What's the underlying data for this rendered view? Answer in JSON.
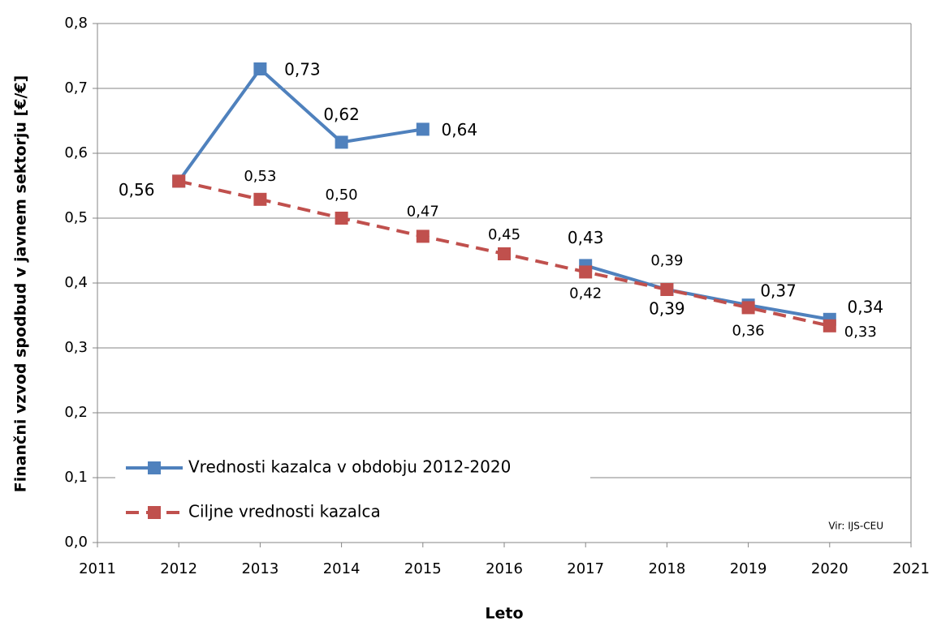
{
  "chart_data": {
    "type": "line",
    "y_label": "Finančni vzvod spodbud v javnem sektorju [€/€]",
    "x_label": "Leto",
    "annotation": "Vir: IJS-CEU",
    "x": [
      2012,
      2013,
      2014,
      2015,
      2016,
      2017,
      2018,
      2019,
      2020
    ],
    "series": [
      {
        "name": "Vrednosti kazalca v obdobju 2012-2020",
        "color": "#4f81bd",
        "dash": false,
        "values": [
          0.557,
          0.73,
          0.617,
          0.637,
          null,
          0.427,
          0.39,
          0.366,
          0.344
        ],
        "value_labels": [
          "0,56",
          "0,73",
          "0,62",
          "0,64",
          null,
          "0,43",
          "0,39",
          "0,37",
          "0,34"
        ]
      },
      {
        "name": "Ciljne vrednosti kazalca",
        "color": "#c0504d",
        "dash": true,
        "values": [
          0.557,
          0.529,
          0.5,
          0.472,
          0.445,
          0.417,
          0.39,
          0.362,
          0.334
        ],
        "value_labels": [
          null,
          "0,53",
          "0,50",
          "0,47",
          "0,45",
          "0,42",
          "0,39",
          "0,36",
          "0,33"
        ]
      }
    ],
    "xlim": [
      2011,
      2021
    ],
    "xticks": [
      2011,
      2012,
      2013,
      2014,
      2015,
      2016,
      2017,
      2018,
      2019,
      2020,
      2021
    ],
    "ylim": [
      0,
      0.8
    ],
    "yticks": [
      {
        "value": 0,
        "label": "0,0"
      },
      {
        "value": 0.1,
        "label": "0,1"
      },
      {
        "value": 0.2,
        "label": "0,2"
      },
      {
        "value": 0.3,
        "label": "0,3"
      },
      {
        "value": 0.4,
        "label": "0,4"
      },
      {
        "value": 0.5,
        "label": "0,5"
      },
      {
        "value": 0.6,
        "label": "0,6"
      },
      {
        "value": 0.7,
        "label": "0,7"
      },
      {
        "value": 0.8,
        "label": "0,8"
      }
    ],
    "grid": true
  }
}
